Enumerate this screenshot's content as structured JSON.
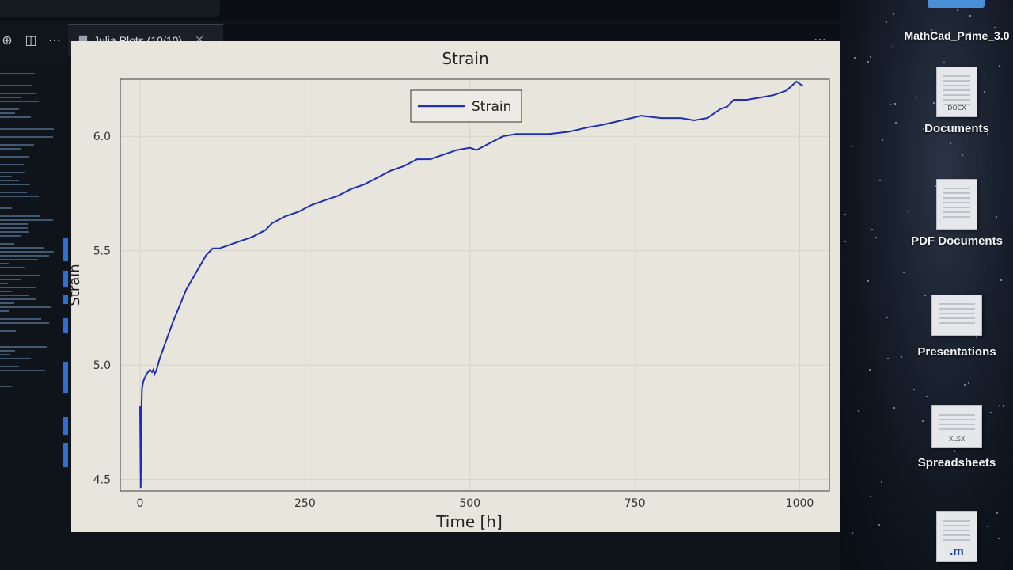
{
  "tab": {
    "label": "Julia Plots (10/10)"
  },
  "chart_data": {
    "type": "line",
    "title": "Strain",
    "xlabel": "Time [h]",
    "ylabel": "Strain",
    "xlim": [
      -30,
      1045
    ],
    "ylim": [
      4.45,
      6.25
    ],
    "xticks": [
      0,
      250,
      500,
      750,
      1000
    ],
    "yticks": [
      4.5,
      5.0,
      5.5,
      6.0
    ],
    "grid": true,
    "legend": "top-center",
    "series": [
      {
        "name": "Strain",
        "color": "#1f2fb5",
        "x": [
          0,
          1,
          2,
          3,
          5,
          8,
          12,
          15,
          18,
          20,
          22,
          25,
          30,
          40,
          50,
          60,
          70,
          80,
          90,
          100,
          110,
          120,
          130,
          150,
          170,
          190,
          200,
          220,
          240,
          260,
          280,
          300,
          320,
          340,
          360,
          380,
          400,
          420,
          440,
          460,
          480,
          500,
          510,
          530,
          550,
          570,
          600,
          620,
          650,
          680,
          700,
          730,
          760,
          790,
          820,
          840,
          860,
          880,
          890,
          900,
          920,
          940,
          960,
          980,
          995,
          1005
        ],
        "y": [
          4.82,
          4.46,
          4.8,
          4.9,
          4.93,
          4.95,
          4.97,
          4.98,
          4.97,
          4.98,
          4.96,
          4.98,
          5.03,
          5.11,
          5.19,
          5.26,
          5.33,
          5.38,
          5.43,
          5.48,
          5.51,
          5.51,
          5.52,
          5.54,
          5.56,
          5.59,
          5.62,
          5.65,
          5.67,
          5.7,
          5.72,
          5.74,
          5.77,
          5.79,
          5.82,
          5.85,
          5.87,
          5.9,
          5.9,
          5.92,
          5.94,
          5.95,
          5.94,
          5.97,
          6.0,
          6.01,
          6.01,
          6.01,
          6.02,
          6.04,
          6.05,
          6.07,
          6.09,
          6.08,
          6.08,
          6.07,
          6.08,
          6.12,
          6.13,
          6.16,
          6.16,
          6.17,
          6.18,
          6.2,
          6.24,
          6.22
        ]
      }
    ]
  },
  "desktop": {
    "items": [
      {
        "label": "MathCad_Prime_3.0",
        "tag": ""
      },
      {
        "label": "Documents",
        "tag": "DOCX"
      },
      {
        "label": "PDF Documents",
        "tag": ""
      },
      {
        "label": "Presentations",
        "tag": ""
      },
      {
        "label": "Spreadsheets",
        "tag": "XLSX"
      },
      {
        "label": ".m",
        "tag": ""
      }
    ]
  }
}
